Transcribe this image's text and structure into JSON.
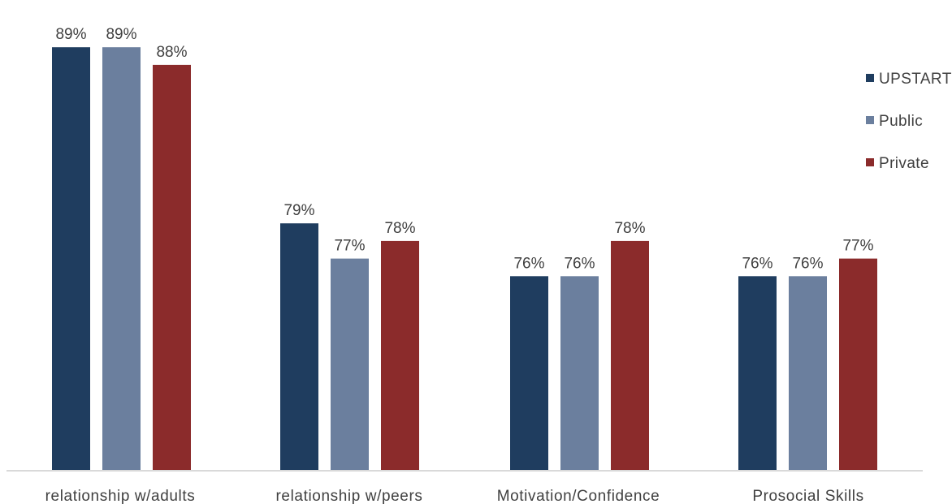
{
  "chart_data": {
    "type": "bar",
    "title": "",
    "xlabel": "",
    "ylabel": "",
    "categories": [
      "relationship w/adults",
      "relationship w/peers",
      "Motivation/Confidence",
      "Prosocial Skills"
    ],
    "series": [
      {
        "name": "UPSTART",
        "color": "#1f3d5f",
        "values": [
          89,
          79,
          76,
          76
        ],
        "labels": [
          "89%",
          "79%",
          "76%",
          "76%"
        ]
      },
      {
        "name": "Public",
        "color": "#6b7f9e",
        "values": [
          89,
          77,
          76,
          76
        ],
        "labels": [
          "89%",
          "77%",
          "76%",
          "76%"
        ]
      },
      {
        "name": "Private",
        "color": "#8b2b2b",
        "values": [
          88,
          78,
          78,
          77
        ],
        "labels": [
          "88%",
          "78%",
          "78%",
          "77%"
        ]
      }
    ],
    "ylim": [
      65,
      89.5
    ],
    "grid": false,
    "legend_position": "right"
  }
}
